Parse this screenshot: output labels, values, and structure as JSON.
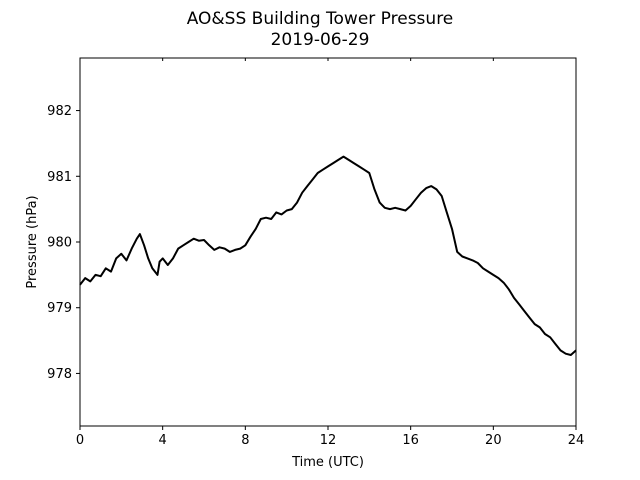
{
  "chart_data": {
    "type": "line",
    "title": "AO&SS Building Tower Pressure",
    "subtitle": "2019-06-29",
    "xlabel": "Time (UTC)",
    "ylabel": "Pressure (hPa)",
    "xlim": [
      0,
      24
    ],
    "ylim": [
      977.2,
      982.8
    ],
    "xticks": [
      0,
      4,
      8,
      12,
      16,
      20,
      24
    ],
    "yticks": [
      978,
      979,
      980,
      981,
      982
    ],
    "grid": false,
    "legend": "none",
    "line_color": "#000000",
    "series": [
      {
        "x": [
          0,
          0.25,
          0.5,
          0.75,
          1,
          1.25,
          1.5,
          1.75,
          2,
          2.25,
          2.5,
          2.75,
          2.9,
          3.1,
          3.3,
          3.5,
          3.75,
          3.85,
          4,
          4.25,
          4.5,
          4.75,
          5,
          5.25,
          5.5,
          5.75,
          6,
          6.25,
          6.5,
          6.75,
          7,
          7.25,
          7.5,
          7.75,
          8,
          8.25,
          8.5,
          8.75,
          9,
          9.25,
          9.5,
          9.75,
          10,
          10.25,
          10.5,
          10.75,
          11,
          11.25,
          11.5,
          11.75,
          12,
          12.25,
          12.5,
          12.75,
          13,
          13.25,
          13.5,
          13.75,
          14,
          14.25,
          14.5,
          14.75,
          15,
          15.25,
          15.5,
          15.75,
          16,
          16.25,
          16.5,
          16.75,
          17,
          17.25,
          17.5,
          17.75,
          18,
          18.25,
          18.5,
          18.75,
          19,
          19.25,
          19.5,
          19.75,
          20,
          20.25,
          20.5,
          20.75,
          21,
          21.25,
          21.5,
          21.75,
          22,
          22.25,
          22.5,
          22.75,
          23,
          23.25,
          23.5,
          23.75,
          24
        ],
        "y": [
          979.35,
          979.45,
          979.4,
          979.5,
          979.48,
          979.6,
          979.55,
          979.75,
          979.82,
          979.72,
          979.9,
          980.05,
          980.12,
          979.95,
          979.75,
          979.6,
          979.5,
          979.7,
          979.75,
          979.65,
          979.75,
          979.9,
          979.95,
          980.0,
          980.05,
          980.02,
          980.03,
          979.95,
          979.88,
          979.92,
          979.9,
          979.85,
          979.88,
          979.9,
          979.95,
          980.08,
          980.2,
          980.35,
          980.37,
          980.35,
          980.45,
          980.42,
          980.48,
          980.5,
          980.6,
          980.75,
          980.85,
          980.95,
          981.05,
          981.1,
          981.15,
          981.2,
          981.25,
          981.3,
          981.25,
          981.2,
          981.15,
          981.1,
          981.05,
          980.8,
          980.6,
          980.52,
          980.5,
          980.52,
          980.5,
          980.48,
          980.55,
          980.65,
          980.75,
          980.82,
          980.85,
          980.8,
          980.7,
          980.45,
          980.2,
          979.85,
          979.78,
          979.75,
          979.72,
          979.68,
          979.6,
          979.55,
          979.5,
          979.45,
          979.38,
          979.28,
          979.15,
          979.05,
          978.95,
          978.85,
          978.75,
          978.7,
          978.6,
          978.55,
          978.45,
          978.35,
          978.3,
          978.28,
          978.35
        ]
      }
    ]
  }
}
